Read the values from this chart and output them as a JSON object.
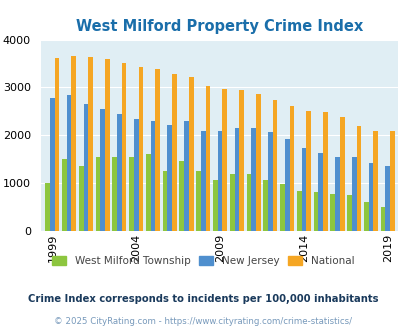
{
  "title": "West Milford Property Crime Index",
  "title_color": "#1a6eaa",
  "years": [
    1999,
    2000,
    2001,
    2002,
    2003,
    2004,
    2005,
    2006,
    2007,
    2008,
    2009,
    2010,
    2011,
    2012,
    2013,
    2014,
    2015,
    2016,
    2017,
    2018,
    2019
  ],
  "west_milford": [
    1000,
    1500,
    1350,
    1550,
    1550,
    1550,
    1600,
    1250,
    1460,
    1260,
    1060,
    1190,
    1190,
    1060,
    980,
    840,
    810,
    780,
    750,
    610,
    500
  ],
  "new_jersey": [
    2780,
    2840,
    2650,
    2550,
    2450,
    2350,
    2300,
    2210,
    2300,
    2090,
    2080,
    2150,
    2150,
    2070,
    1920,
    1730,
    1620,
    1550,
    1540,
    1430,
    1350
  ],
  "national": [
    3620,
    3650,
    3630,
    3600,
    3510,
    3420,
    3380,
    3290,
    3220,
    3040,
    2960,
    2940,
    2870,
    2740,
    2620,
    2510,
    2490,
    2380,
    2190,
    2100,
    2090
  ],
  "west_milford_color": "#8dc63f",
  "new_jersey_color": "#4f8fce",
  "national_color": "#f5a623",
  "bg_color": "#e0eef4",
  "ylim": [
    0,
    4000
  ],
  "yticks": [
    0,
    1000,
    2000,
    3000,
    4000
  ],
  "xlabel_ticks": [
    1999,
    2004,
    2009,
    2014,
    2019
  ],
  "legend_labels": [
    "West Milford Township",
    "New Jersey",
    "National"
  ],
  "footnote": "Crime Index corresponds to incidents per 100,000 inhabitants",
  "footnote2": "© 2025 CityRating.com - https://www.cityrating.com/crime-statistics/",
  "footnote_color": "#1a3a5c",
  "footnote2_color": "#7799bb",
  "fig_width": 4.06,
  "fig_height": 3.3,
  "dpi": 100
}
